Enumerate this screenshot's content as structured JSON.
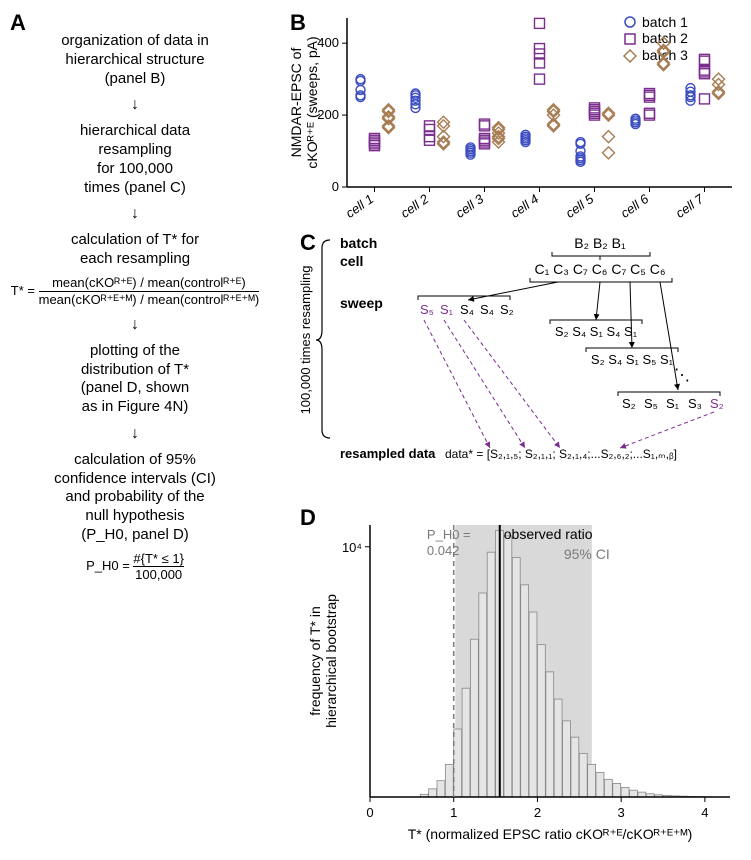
{
  "panelA": {
    "label": "A",
    "step1": [
      "organization of data in",
      "hierarchical structure",
      "(panel B)"
    ],
    "step2": [
      "hierarchical data",
      "resampling",
      "for 100,000",
      "times (panel C)"
    ],
    "step3": [
      "calculation of T* for",
      "each resampling"
    ],
    "formula1_lhs": "T* =",
    "formula1_top": "mean(cKOᴿ⁺ᴱ) / mean(controlᴿ⁺ᴱ)",
    "formula1_bot": "mean(cKOᴿ⁺ᴱ⁺ᴹ) / mean(controlᴿ⁺ᴱ⁺ᴹ)",
    "step4": [
      "plotting of the",
      "distribution of T*",
      "(panel D, shown",
      "as in Figure 4N)"
    ],
    "step5": [
      "calculation of 95%",
      "confidence intervals (CI)",
      "and probability of the",
      "null hypothesis",
      "(P_H0, panel D)"
    ],
    "formula2_lhs": "P_H0 =",
    "formula2_top": "#{T* ≤ 1}",
    "formula2_bot": "100,000"
  },
  "panelB": {
    "label": "B",
    "ylabel": [
      "NMDAR-EPSC of",
      "cKOᴿ⁺ᴱ (sweeps, pA)"
    ],
    "yticks": [
      0,
      200,
      400
    ],
    "xlabels": [
      "cell 1",
      "cell 2",
      "cell 3",
      "cell 4",
      "cell 5",
      "cell 6",
      "cell 7"
    ],
    "legend": [
      "batch 1",
      "batch 2",
      "batch 3"
    ],
    "colors": {
      "b1": "#3b4cc0",
      "b2": "#7b2d8e",
      "b3": "#a67c52"
    },
    "data": {
      "cell1": {
        "b1": [
          300,
          295,
          270,
          255,
          250
        ],
        "b2": [
          135,
          130,
          125,
          120,
          115
        ],
        "b3": [
          215,
          210,
          195,
          190,
          170,
          165
        ]
      },
      "cell2": {
        "b1": [
          260,
          255,
          248,
          240,
          230,
          220
        ],
        "b2": [
          170,
          160,
          140,
          130
        ],
        "b3": [
          180,
          170,
          140,
          125,
          120
        ]
      },
      "cell3": {
        "b1": [
          100,
          95,
          105,
          90,
          110
        ],
        "b2": [
          175,
          170,
          135,
          130,
          125,
          120
        ],
        "b3": [
          165,
          160,
          150,
          140,
          135,
          125
        ]
      },
      "cell4": {
        "b1": [
          145,
          140,
          135,
          130,
          125
        ],
        "b2": [
          455,
          385,
          370,
          345,
          300
        ],
        "b3": [
          215,
          210,
          200,
          175,
          170
        ]
      },
      "cell5": {
        "b1": [
          125,
          120,
          100,
          85,
          80,
          75,
          70
        ],
        "b2": [
          220,
          215,
          210,
          205,
          200
        ],
        "b3": [
          205,
          200,
          140,
          95
        ]
      },
      "cell6": {
        "b1": [
          190,
          185,
          180,
          175
        ],
        "b2": [
          260,
          255,
          250,
          205,
          200
        ],
        "b3": [
          400,
          380,
          375,
          345,
          340
        ]
      },
      "cell7": {
        "b1": [
          275,
          265,
          255,
          250,
          240
        ],
        "b2": [
          355,
          350,
          325,
          320,
          315,
          245
        ],
        "b3": [
          300,
          285,
          265,
          260
        ]
      }
    }
  },
  "panelC": {
    "label": "C",
    "rows": [
      "batch",
      "cell",
      "sweep"
    ],
    "side_label": "100,000 times resampling",
    "bottom_label": "resampled data",
    "batch_cells": "B₂  B₂  B₁",
    "cells_line": "C₁ C₃ C₇ C₆ C₇ C₅ C₆",
    "sweep1": [
      "S₅",
      "S₁",
      "S₄",
      "S₄",
      "S₂"
    ],
    "sweep2": "S₂ S₄ S₁ S₄ S₁",
    "sweep3": "S₂ S₄ S₁ S₅ S₁",
    "sweep4": "S₂ S₅ S₁ S₃ S₂",
    "data_star": "data* = [S₂,₁,₅; S₂,₁,₁; S₂,₁,₄;...S₂,₆,₂;...S₁,ₘ,ᵦ]",
    "colors": {
      "purple": "#7b2d8e",
      "black": "#000000"
    }
  },
  "panelD": {
    "label": "D",
    "ylabel": [
      "frequency of T* in",
      "hierarchical bootstrap"
    ],
    "xlabel": "T* (normalized EPSC ratio cKOᴿ⁺ᴱ/cKOᴿ⁺ᴱ⁺ᴹ)",
    "xticks": [
      0,
      1,
      2,
      3,
      4
    ],
    "ytick": "10⁴",
    "ci_label": "95% CI",
    "ci_range": [
      1.02,
      2.65
    ],
    "observed": 1.55,
    "observed_label": "observed ratio",
    "ph0_label": [
      "P_H0 =",
      "0.042"
    ],
    "colors": {
      "bar_fill": "#e5e5e5",
      "bar_stroke": "#888888",
      "ci_fill": "#d9d9d9",
      "grid": "#000000",
      "text_gray": "#7a7a7a"
    },
    "hist_bins": {
      "start": 0.6,
      "width": 0.1,
      "heights": [
        0.01,
        0.03,
        0.06,
        0.12,
        0.25,
        0.4,
        0.58,
        0.75,
        0.9,
        0.98,
        0.96,
        0.88,
        0.78,
        0.68,
        0.56,
        0.46,
        0.36,
        0.28,
        0.22,
        0.16,
        0.12,
        0.09,
        0.065,
        0.05,
        0.035,
        0.025,
        0.018,
        0.012,
        0.008,
        0.006,
        0.004,
        0.003,
        0.002,
        0.0015,
        0.001
      ]
    }
  }
}
